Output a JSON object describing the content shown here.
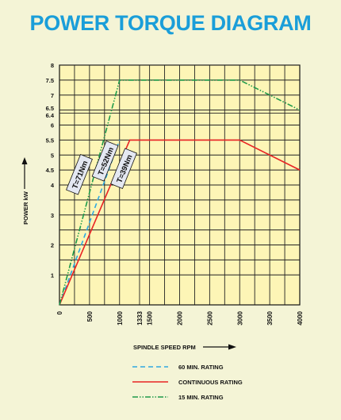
{
  "chart_data": {
    "type": "line",
    "title": "POWER TORQUE DIAGRAM",
    "xlabel": "SPINDLE SPEED RPM",
    "ylabel": "POWER kW",
    "xlim": [
      0,
      4000
    ],
    "ylim": [
      0,
      8
    ],
    "x_ticks": [
      {
        "value": 0,
        "label": "0"
      },
      {
        "value": 500,
        "label": "500"
      },
      {
        "value": 1000,
        "label": "1000"
      },
      {
        "value": 1333,
        "label": "1333"
      },
      {
        "value": 1500,
        "label": "1500"
      },
      {
        "value": 2000,
        "label": "2000"
      },
      {
        "value": 2500,
        "label": "2500"
      },
      {
        "value": 3000,
        "label": "3000"
      },
      {
        "value": 3500,
        "label": "3500"
      },
      {
        "value": 4000,
        "label": "4000"
      }
    ],
    "x_gridlines": [
      0,
      250,
      500,
      750,
      1000,
      1333,
      1500,
      1750,
      2000,
      2250,
      2500,
      2750,
      3000,
      3250,
      3500,
      3750,
      4000
    ],
    "y_ticks": [
      {
        "value": 1,
        "label": "1"
      },
      {
        "value": 2,
        "label": "2"
      },
      {
        "value": 3,
        "label": "3"
      },
      {
        "value": 4,
        "label": "4"
      },
      {
        "value": 4.5,
        "label": "4.5"
      },
      {
        "value": 5,
        "label": "5"
      },
      {
        "value": 5.5,
        "label": "5.5"
      },
      {
        "value": 6,
        "label": "6"
      },
      {
        "value": 6.4,
        "label": "6.4"
      },
      {
        "value": 6.5,
        "label": "6.5"
      },
      {
        "value": 7,
        "label": "7"
      },
      {
        "value": 7.5,
        "label": "7.5"
      },
      {
        "value": 8,
        "label": "8"
      }
    ],
    "y_gridlines": [
      1,
      1.5,
      2,
      2.5,
      3,
      3.5,
      4,
      4.5,
      5,
      5.5,
      6,
      6.4,
      6.5,
      7,
      7.5,
      8
    ],
    "grid": true,
    "series": [
      {
        "name": "60 MIN. RATING",
        "color": "#2ea8e0",
        "dash": "dashed",
        "points": [
          [
            0,
            0
          ],
          [
            1000,
            5.5
          ]
        ]
      },
      {
        "name": "CONTINUOUS RATING",
        "color": "#e82424",
        "dash": "solid",
        "points": [
          [
            0,
            0
          ],
          [
            1170,
            5.5
          ],
          [
            3000,
            5.5
          ],
          [
            4000,
            4.5
          ]
        ]
      },
      {
        "name": "15 MIN. RATING",
        "color": "#1e9a4a",
        "dash": "dash-dot-dot",
        "points": [
          [
            0,
            0
          ],
          [
            1000,
            7.5
          ],
          [
            3000,
            7.5
          ],
          [
            4000,
            6.5
          ]
        ]
      }
    ],
    "annotations": [
      {
        "text": "T=71Nm",
        "x": 330,
        "y": 4.35
      },
      {
        "text": "T=52Nm",
        "x": 760,
        "y": 4.8
      },
      {
        "text": "T=39Nm",
        "x": 1070,
        "y": 4.55
      }
    ],
    "legend_position": "bottom"
  }
}
